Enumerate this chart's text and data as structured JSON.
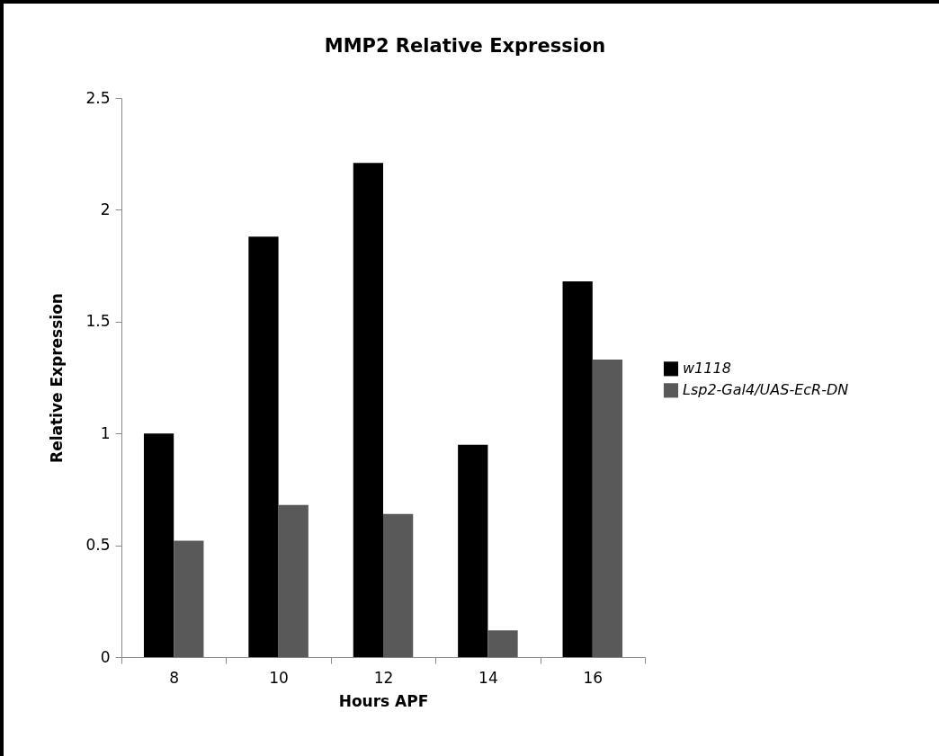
{
  "chart_data": {
    "type": "bar",
    "title": "MMP2 Relative Expression",
    "xlabel": "Hours APF",
    "ylabel": "Relative Expression",
    "categories": [
      "8",
      "10",
      "12",
      "14",
      "16"
    ],
    "series": [
      {
        "name": "w1118",
        "color": "#000000",
        "values": [
          1.0,
          1.88,
          2.21,
          0.95,
          1.68
        ]
      },
      {
        "name": "Lsp2-Gal4/UAS-EcR-DN",
        "color": "#595959",
        "values": [
          0.52,
          0.68,
          0.64,
          0.12,
          1.33
        ]
      }
    ],
    "ylim": [
      0,
      2.5
    ],
    "yticks": [
      0,
      0.5,
      1,
      1.5,
      2,
      2.5
    ],
    "grid": false,
    "legend": "right"
  }
}
